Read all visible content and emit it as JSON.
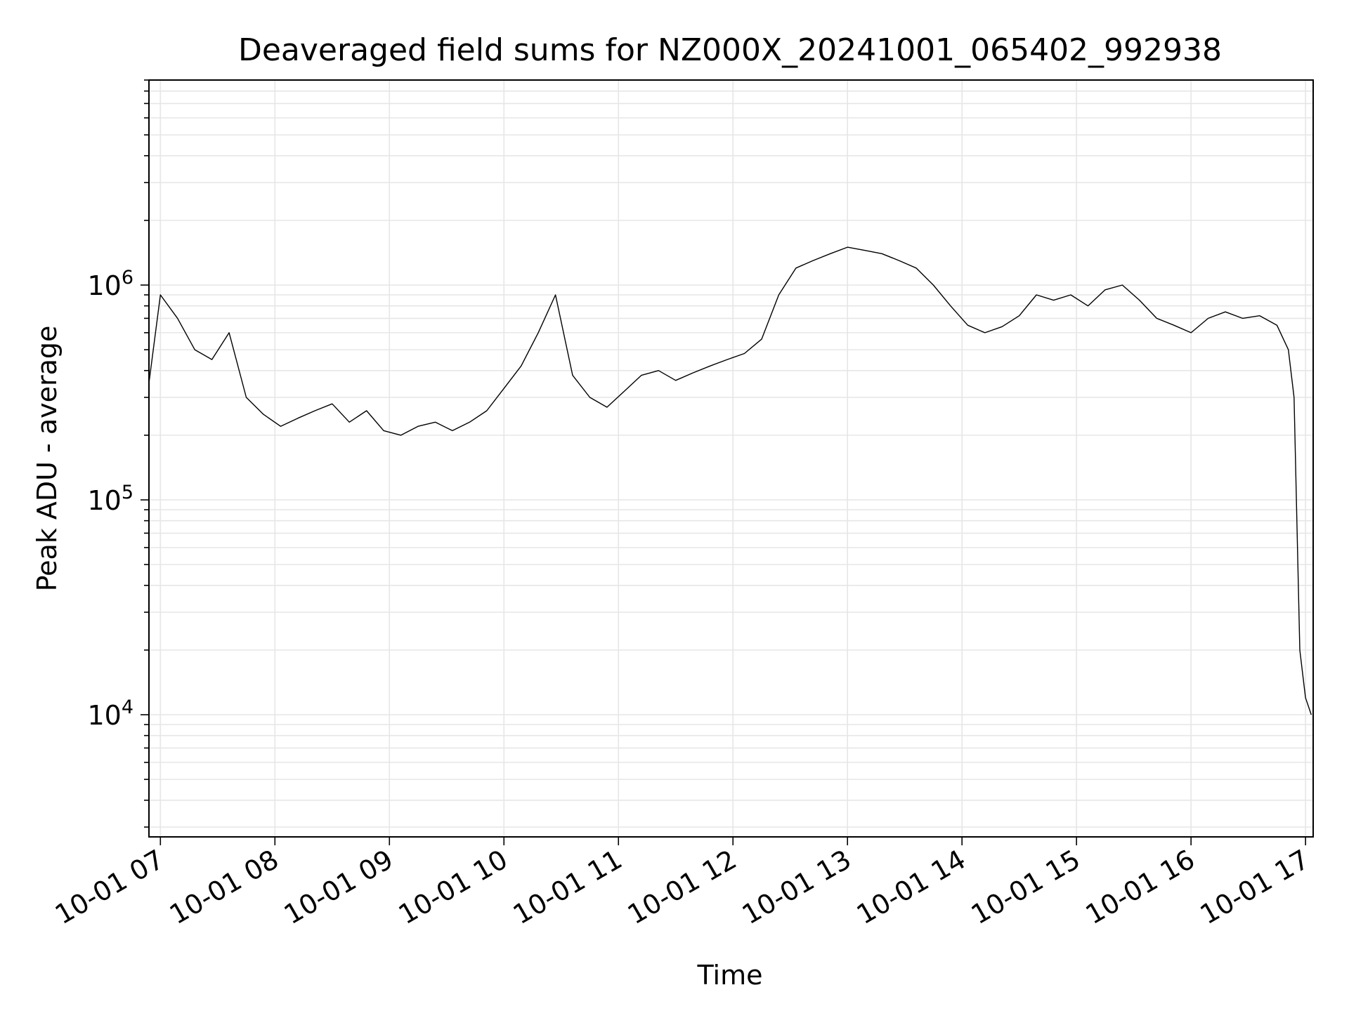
{
  "chart_data": {
    "type": "line",
    "title": "Deaveraged field sums for NZ000X_20241001_065402_992938",
    "xlabel": "Time",
    "ylabel": "Peak ADU - average",
    "yscale": "log",
    "xlim": [
      "2024-10-01 06:54",
      "2024-10-01 17:04"
    ],
    "ylim": [
      2700,
      9000000
    ],
    "x_ticks": [
      {
        "value": "2024-10-01 07:00",
        "label": "10-01 07"
      },
      {
        "value": "2024-10-01 08:00",
        "label": "10-01 08"
      },
      {
        "value": "2024-10-01 09:00",
        "label": "10-01 09"
      },
      {
        "value": "2024-10-01 10:00",
        "label": "10-01 10"
      },
      {
        "value": "2024-10-01 11:00",
        "label": "10-01 11"
      },
      {
        "value": "2024-10-01 12:00",
        "label": "10-01 12"
      },
      {
        "value": "2024-10-01 13:00",
        "label": "10-01 13"
      },
      {
        "value": "2024-10-01 14:00",
        "label": "10-01 14"
      },
      {
        "value": "2024-10-01 15:00",
        "label": "10-01 15"
      },
      {
        "value": "2024-10-01 16:00",
        "label": "10-01 16"
      },
      {
        "value": "2024-10-01 17:00",
        "label": "10-01 17"
      }
    ],
    "y_ticks": [
      {
        "value": 10000,
        "base": "10",
        "exp": "4"
      },
      {
        "value": 100000,
        "base": "10",
        "exp": "5"
      },
      {
        "value": 1000000,
        "base": "10",
        "exp": "6"
      }
    ],
    "grid": true,
    "series": [
      {
        "color": "#000000",
        "x": [
          "2024-10-01 06:54",
          "2024-10-01 07:00",
          "2024-10-01 07:09",
          "2024-10-01 07:18",
          "2024-10-01 07:27",
          "2024-10-01 07:36",
          "2024-10-01 07:45",
          "2024-10-01 07:54",
          "2024-10-01 08:03",
          "2024-10-01 08:12",
          "2024-10-01 08:21",
          "2024-10-01 08:30",
          "2024-10-01 08:39",
          "2024-10-01 08:48",
          "2024-10-01 08:57",
          "2024-10-01 09:06",
          "2024-10-01 09:15",
          "2024-10-01 09:24",
          "2024-10-01 09:33",
          "2024-10-01 09:42",
          "2024-10-01 09:51",
          "2024-10-01 10:00",
          "2024-10-01 10:09",
          "2024-10-01 10:18",
          "2024-10-01 10:27",
          "2024-10-01 10:36",
          "2024-10-01 10:45",
          "2024-10-01 10:54",
          "2024-10-01 11:03",
          "2024-10-01 11:12",
          "2024-10-01 11:21",
          "2024-10-01 11:30",
          "2024-10-01 11:39",
          "2024-10-01 11:48",
          "2024-10-01 11:57",
          "2024-10-01 12:06",
          "2024-10-01 12:15",
          "2024-10-01 12:24",
          "2024-10-01 12:33",
          "2024-10-01 12:42",
          "2024-10-01 12:51",
          "2024-10-01 13:00",
          "2024-10-01 13:09",
          "2024-10-01 13:18",
          "2024-10-01 13:27",
          "2024-10-01 13:36",
          "2024-10-01 13:45",
          "2024-10-01 13:54",
          "2024-10-01 14:03",
          "2024-10-01 14:12",
          "2024-10-01 14:21",
          "2024-10-01 14:30",
          "2024-10-01 14:39",
          "2024-10-01 14:48",
          "2024-10-01 14:57",
          "2024-10-01 15:06",
          "2024-10-01 15:15",
          "2024-10-01 15:24",
          "2024-10-01 15:33",
          "2024-10-01 15:42",
          "2024-10-01 15:51",
          "2024-10-01 16:00",
          "2024-10-01 16:09",
          "2024-10-01 16:18",
          "2024-10-01 16:27",
          "2024-10-01 16:36",
          "2024-10-01 16:45",
          "2024-10-01 16:51",
          "2024-10-01 16:54",
          "2024-10-01 16:57",
          "2024-10-01 17:00",
          "2024-10-01 17:03"
        ],
        "y": [
          350000,
          900000,
          700000,
          500000,
          450000,
          600000,
          300000,
          250000,
          220000,
          240000,
          260000,
          280000,
          230000,
          260000,
          210000,
          200000,
          220000,
          230000,
          210000,
          230000,
          260000,
          330000,
          420000,
          600000,
          900000,
          380000,
          300000,
          270000,
          320000,
          380000,
          400000,
          360000,
          390000,
          420000,
          450000,
          480000,
          560000,
          900000,
          1200000,
          1300000,
          1400000,
          1500000,
          1450000,
          1400000,
          1300000,
          1200000,
          1000000,
          800000,
          650000,
          600000,
          640000,
          720000,
          900000,
          850000,
          900000,
          800000,
          950000,
          1000000,
          850000,
          700000,
          650000,
          600000,
          700000,
          750000,
          700000,
          720000,
          650000,
          500000,
          300000,
          20000,
          12000,
          10000
        ]
      }
    ]
  }
}
